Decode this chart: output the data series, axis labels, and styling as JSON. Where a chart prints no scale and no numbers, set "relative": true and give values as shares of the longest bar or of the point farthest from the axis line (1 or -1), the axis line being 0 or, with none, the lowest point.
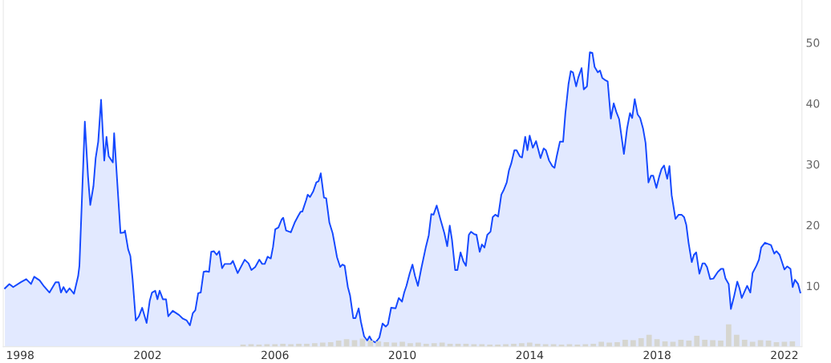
{
  "chart_data": [
    {
      "type": "area",
      "xlim": [
        1997.47,
        2022.55
      ],
      "xticks": [
        1998,
        2002,
        2006,
        2010,
        2014,
        2018,
        2022
      ],
      "ylim": [
        0,
        57
      ],
      "yticks": [
        10,
        20,
        30,
        40,
        50
      ],
      "grid": false,
      "marker": "none",
      "line_style": "solid",
      "series": [
        {
          "color": "#1448ff",
          "x": [
            1997.52,
            1997.66,
            1997.78,
            1998.02,
            1998.19,
            1998.34,
            1998.44,
            1998.61,
            1998.75,
            1998.92,
            1999.11,
            1999.21,
            1999.28,
            1999.36,
            1999.45,
            1999.55,
            1999.69,
            1999.82,
            1999.86,
            2000.03,
            2000.13,
            2000.2,
            2000.3,
            2000.37,
            2000.45,
            2000.54,
            2000.64,
            2000.71,
            2000.78,
            2000.91,
            2000.95,
            2001.15,
            2001.27,
            2001.29,
            2001.39,
            2001.46,
            2001.53,
            2001.63,
            2001.73,
            2001.83,
            2001.97,
            2002.07,
            2002.14,
            2002.24,
            2002.31,
            2002.38,
            2002.48,
            2002.58,
            2002.65,
            2002.79,
            2002.99,
            2003.11,
            2003.23,
            2003.33,
            2003.42,
            2003.5,
            2003.59,
            2003.67,
            2003.76,
            2003.84,
            2003.93,
            2004.0,
            2004.08,
            2004.17,
            2004.25,
            2004.34,
            2004.42,
            2004.61,
            2004.68,
            2004.83,
            2005.05,
            2005.17,
            2005.26,
            2005.38,
            2005.51,
            2005.6,
            2005.68,
            2005.77,
            2005.87,
            2005.94,
            2006.01,
            2006.11,
            2006.21,
            2006.26,
            2006.35,
            2006.5,
            2006.62,
            2006.74,
            2006.81,
            2006.86,
            2006.98,
            2007.03,
            2007.1,
            2007.2,
            2007.3,
            2007.37,
            2007.44,
            2007.54,
            2007.61,
            2007.71,
            2007.81,
            2007.85,
            2007.95,
            2008.05,
            2008.12,
            2008.19,
            2008.29,
            2008.36,
            2008.46,
            2008.53,
            2008.63,
            2008.7,
            2008.8,
            2008.9,
            2008.97,
            2009.04,
            2009.16,
            2009.28,
            2009.38,
            2009.48,
            2009.55,
            2009.65,
            2009.79,
            2009.89,
            2009.99,
            2010.06,
            2010.13,
            2010.23,
            2010.32,
            2010.4,
            2010.49,
            2010.59,
            2010.74,
            2010.83,
            2010.91,
            2010.98,
            2011.08,
            2011.2,
            2011.32,
            2011.41,
            2011.49,
            2011.56,
            2011.66,
            2011.73,
            2011.83,
            2011.92,
            2012.0,
            2012.09,
            2012.16,
            2012.26,
            2012.33,
            2012.43,
            2012.5,
            2012.58,
            2012.67,
            2012.77,
            2012.84,
            2012.92,
            2013.01,
            2013.11,
            2013.18,
            2013.28,
            2013.35,
            2013.42,
            2013.52,
            2013.59,
            2013.69,
            2013.76,
            2013.86,
            2013.93,
            2014.0,
            2014.1,
            2014.2,
            2014.34,
            2014.44,
            2014.51,
            2014.61,
            2014.71,
            2014.78,
            2014.85,
            2014.95,
            2015.05,
            2015.12,
            2015.22,
            2015.29,
            2015.36,
            2015.46,
            2015.53,
            2015.63,
            2015.7,
            2015.8,
            2015.89,
            2015.97,
            2016.04,
            2016.14,
            2016.21,
            2016.28,
            2016.38,
            2016.45,
            2016.55,
            2016.64,
            2016.72,
            2016.81,
            2016.96,
            2017.06,
            2017.15,
            2017.22,
            2017.3,
            2017.39,
            2017.47,
            2017.56,
            2017.64,
            2017.73,
            2017.81,
            2017.88,
            2017.98,
            2018.07,
            2018.14,
            2018.22,
            2018.32,
            2018.39,
            2018.46,
            2018.58,
            2018.68,
            2018.77,
            2018.85,
            2018.92,
            2018.99,
            2019.09,
            2019.16,
            2019.23,
            2019.33,
            2019.43,
            2019.5,
            2019.57,
            2019.67,
            2019.77,
            2019.91,
            2020.01,
            2020.08,
            2020.15,
            2020.25,
            2020.32,
            2020.42,
            2020.52,
            2020.59,
            2020.66,
            2020.76,
            2020.83,
            2020.93,
            2021.0,
            2021.12,
            2021.2,
            2021.27,
            2021.39,
            2021.58,
            2021.68,
            2021.75,
            2021.85,
            2022.0,
            2022.09,
            2022.19,
            2022.26,
            2022.33,
            2022.43,
            2022.5
          ],
          "values": [
            9.6,
            10.3,
            9.8,
            10.6,
            11.1,
            10.3,
            11.5,
            10.9,
            9.9,
            8.9,
            10.6,
            10.6,
            8.9,
            9.8,
            8.9,
            9.6,
            8.7,
            11.6,
            13.3,
            37.0,
            28.0,
            23.3,
            26.4,
            31.0,
            33.7,
            40.6,
            30.6,
            34.5,
            31.3,
            30.3,
            35.1,
            18.7,
            18.8,
            19.1,
            16.0,
            14.9,
            11.1,
            4.3,
            5.0,
            6.4,
            3.9,
            7.6,
            8.9,
            9.2,
            7.8,
            9.2,
            7.8,
            7.8,
            5.0,
            5.9,
            5.2,
            4.6,
            4.3,
            3.5,
            5.5,
            6.0,
            8.8,
            8.9,
            12.3,
            12.4,
            12.3,
            15.6,
            15.7,
            15.1,
            15.7,
            12.9,
            13.6,
            13.6,
            14.1,
            12.1,
            14.3,
            13.7,
            12.6,
            13.1,
            14.3,
            13.6,
            13.6,
            14.8,
            14.5,
            16.4,
            19.3,
            19.6,
            20.9,
            21.2,
            19.1,
            18.8,
            20.4,
            21.6,
            22.2,
            22.2,
            24.1,
            25.0,
            24.6,
            25.5,
            27.0,
            27.2,
            28.5,
            24.5,
            24.4,
            20.4,
            18.7,
            17.6,
            14.7,
            13.1,
            13.5,
            13.3,
            9.8,
            8.4,
            4.7,
            4.7,
            6.3,
            4.1,
            1.7,
            1.0,
            1.7,
            1.0,
            0.7,
            1.5,
            3.8,
            3.3,
            3.7,
            6.4,
            6.3,
            8.0,
            7.4,
            8.9,
            10.0,
            12.0,
            13.5,
            11.6,
            10.0,
            12.7,
            16.4,
            18.3,
            21.8,
            21.7,
            23.2,
            20.9,
            18.7,
            16.5,
            19.9,
            17.6,
            12.6,
            12.6,
            15.5,
            14.0,
            13.3,
            18.4,
            18.9,
            18.5,
            18.4,
            15.6,
            16.8,
            16.3,
            18.4,
            18.9,
            21.3,
            21.7,
            21.4,
            25.0,
            25.7,
            27.0,
            29.0,
            30.1,
            32.3,
            32.3,
            31.3,
            31.1,
            34.5,
            32.3,
            34.7,
            32.7,
            33.8,
            31.0,
            32.6,
            32.3,
            30.6,
            29.7,
            29.4,
            31.3,
            33.7,
            33.7,
            38.3,
            43.2,
            45.3,
            45.1,
            42.8,
            44.3,
            45.8,
            42.3,
            42.8,
            48.4,
            48.3,
            46.0,
            45.1,
            45.4,
            44.2,
            43.8,
            43.6,
            37.5,
            40.0,
            38.6,
            37.4,
            31.7,
            35.9,
            38.4,
            37.6,
            40.7,
            38.2,
            37.6,
            35.9,
            33.5,
            27.0,
            28.1,
            28.1,
            26.1,
            28.0,
            29.2,
            29.8,
            27.6,
            29.7,
            24.9,
            21.0,
            21.7,
            21.7,
            21.3,
            20.0,
            17.1,
            13.9,
            15.1,
            15.5,
            12.0,
            13.7,
            13.7,
            13.1,
            11.1,
            11.2,
            12.3,
            12.8,
            12.8,
            11.2,
            10.3,
            6.2,
            8.3,
            10.7,
            9.6,
            8.0,
            9.2,
            10.0,
            8.9,
            12.1,
            13.3,
            14.3,
            16.3,
            17.1,
            16.7,
            15.3,
            15.7,
            15.1,
            12.7,
            13.2,
            12.8,
            9.8,
            11.0,
            10.3,
            8.9
          ]
        }
      ]
    },
    {
      "type": "bar",
      "relative": true,
      "color": "#d6d6d0",
      "xlim": [
        1997.47,
        2022.55
      ],
      "x": [
        2005.0,
        2005.25,
        2005.5,
        2005.75,
        2006.0,
        2006.25,
        2006.5,
        2006.75,
        2007.0,
        2007.25,
        2007.5,
        2007.75,
        2008.0,
        2008.25,
        2008.5,
        2008.75,
        2009.0,
        2009.25,
        2009.5,
        2009.75,
        2010.0,
        2010.25,
        2010.5,
        2010.75,
        2011.0,
        2011.25,
        2011.5,
        2011.75,
        2012.0,
        2012.25,
        2012.5,
        2012.75,
        2013.0,
        2013.25,
        2013.5,
        2013.75,
        2014.0,
        2014.25,
        2014.5,
        2014.75,
        2015.0,
        2015.25,
        2015.5,
        2015.75,
        2016.0,
        2016.25,
        2016.5,
        2016.75,
        2017.0,
        2017.25,
        2017.5,
        2017.75,
        2018.0,
        2018.25,
        2018.5,
        2018.75,
        2019.0,
        2019.25,
        2019.5,
        2019.75,
        2020.0,
        2020.25,
        2020.5,
        2020.75,
        2021.0,
        2021.25,
        2021.5,
        2021.75,
        2022.0,
        2022.25
      ],
      "values": [
        0.09,
        0.11,
        0.09,
        0.11,
        0.11,
        0.13,
        0.11,
        0.13,
        0.13,
        0.16,
        0.18,
        0.2,
        0.27,
        0.33,
        0.29,
        0.36,
        0.27,
        0.24,
        0.2,
        0.18,
        0.22,
        0.16,
        0.18,
        0.13,
        0.16,
        0.18,
        0.13,
        0.13,
        0.13,
        0.11,
        0.11,
        0.09,
        0.09,
        0.11,
        0.13,
        0.16,
        0.18,
        0.13,
        0.11,
        0.11,
        0.09,
        0.11,
        0.09,
        0.11,
        0.13,
        0.22,
        0.18,
        0.2,
        0.31,
        0.29,
        0.38,
        0.53,
        0.33,
        0.24,
        0.22,
        0.31,
        0.27,
        0.49,
        0.31,
        0.29,
        0.27,
        1,
        0.53,
        0.31,
        0.22,
        0.29,
        0.27,
        0.2,
        0.22,
        0.24
      ]
    }
  ]
}
